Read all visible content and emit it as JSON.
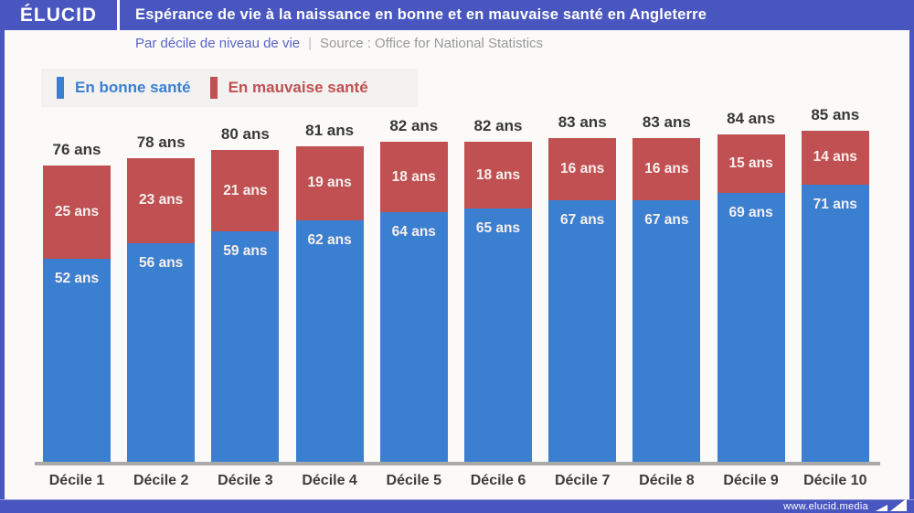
{
  "header": {
    "logo": "ÉLUCID",
    "title": "Espérance de vie à la naissance en bonne et en mauvaise santé en Angleterre"
  },
  "subtitle": {
    "text": "Par décile de niveau de vie",
    "separator": "|",
    "source": "Source : Office for National Statistics"
  },
  "legend": {
    "items": [
      {
        "label": "En bonne santé",
        "color": "#3b7fd1"
      },
      {
        "label": "En mauvaise santé",
        "color": "#c05051"
      }
    ]
  },
  "footer": {
    "url": "www.elucid.media"
  },
  "colors": {
    "accent_blue": "#4956bf",
    "good_health": "#3b7fd1",
    "poor_health": "#c05051",
    "background": "#fbfaf9",
    "legend_background": "#f3f2f1",
    "subtitle_blue": "#5a63c4",
    "axis_gray": "#a9a9a9"
  },
  "chart_data": {
    "type": "bar",
    "stacked": true,
    "grid": false,
    "legend_position": "top-left",
    "unit": "ans",
    "ylim": [
      0,
      85
    ],
    "categories": [
      "Décile 1",
      "Décile 2",
      "Décile 3",
      "Décile 4",
      "Décile 5",
      "Décile 6",
      "Décile 7",
      "Décile 8",
      "Décile 9",
      "Décile 10"
    ],
    "series": [
      {
        "name": "En bonne santé",
        "color": "#3b7fd1",
        "values": [
          52,
          56,
          59,
          62,
          64,
          65,
          67,
          67,
          69,
          71
        ],
        "labels": [
          "52 ans",
          "56 ans",
          "59 ans",
          "62 ans",
          "64 ans",
          "65 ans",
          "67 ans",
          "67 ans",
          "69 ans",
          "71 ans"
        ]
      },
      {
        "name": "En mauvaise santé",
        "color": "#c05051",
        "values": [
          25,
          23,
          21,
          19,
          18,
          18,
          16,
          16,
          15,
          14
        ],
        "labels": [
          "25 ans",
          "23 ans",
          "21 ans",
          "19 ans",
          "18 ans",
          "18 ans",
          "16 ans",
          "16 ans",
          "15 ans",
          "14 ans"
        ]
      }
    ],
    "totals": [
      76,
      78,
      80,
      81,
      82,
      82,
      83,
      83,
      84,
      85
    ],
    "total_labels": [
      "76 ans",
      "78 ans",
      "80 ans",
      "81 ans",
      "82 ans",
      "82 ans",
      "83 ans",
      "83 ans",
      "84 ans",
      "85 ans"
    ]
  }
}
